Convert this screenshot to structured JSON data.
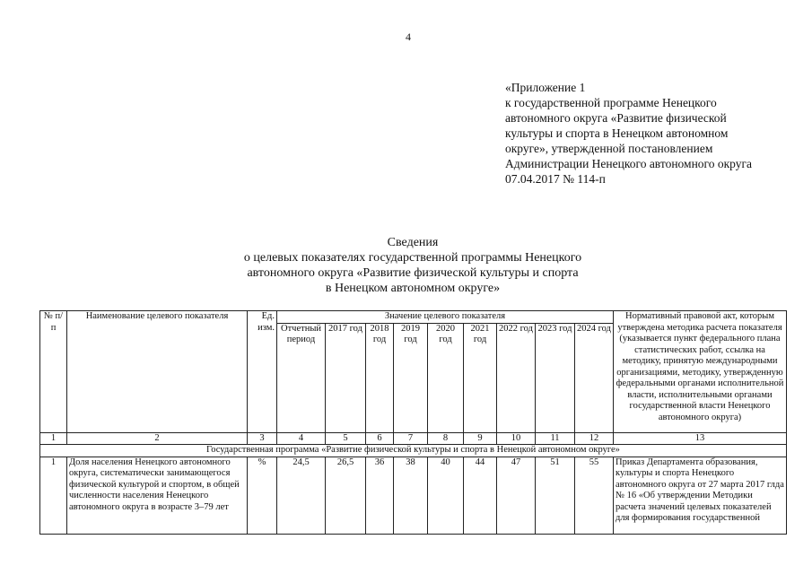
{
  "page_number": "4",
  "appendix": [
    "«Приложение 1",
    "к государственной программе Ненецкого",
    "автономного округа «Развитие физической",
    "культуры и спорта в Ненецком автономном",
    "округе», утвержденной постановлением",
    "Администрации Ненецкого автономного округа",
    "07.04.2017 № 114-п"
  ],
  "title": [
    "Сведения",
    "о целевых показателях государственной программы Ненецкого",
    "автономного округа «Развитие физической культуры и спорта",
    "в Ненецком автономном округе»"
  ],
  "table": {
    "headers": {
      "num": "№ п/п",
      "name": "Наименование целевого показателя",
      "unit": "Ед. изм.",
      "value_group": "Значение целевого показателя",
      "periods": [
        "Отчетный период",
        "2017 год",
        "2018 год",
        "2019 год",
        "2020 год",
        "2021 год",
        "2022 год",
        "2023 год",
        "2024 год"
      ],
      "act": "Нормативный правовой акт, которым утверждена методика расчета показателя (указывается пункт федерального плана статистических работ, ссылка на методику, принятую международными организациями, методику, утвержденную федеральными органами исполнительной власти, исполнительными органами государственной власти Ненецкого автономного округа)"
    },
    "column_numbers": [
      "1",
      "2",
      "3",
      "4",
      "5",
      "6",
      "7",
      "8",
      "9",
      "10",
      "11",
      "12",
      "13"
    ],
    "section": "Государственная программа «Развитие физической культуры и спорта в Ненецкой автономном округе»",
    "rows": [
      {
        "num": "1",
        "name": "Доля населения Ненецкого автономного округа, систематически занимающегося физической культурой и спортом, в общей численности населения Ненецкого автономного округа в возрасте 3–79 лет",
        "unit": "%",
        "values": [
          "24,5",
          "26,5",
          "36",
          "38",
          "40",
          "44",
          "47",
          "51",
          "55"
        ],
        "act": "Приказ Департамента образования, культуры и спорта Ненецкого автономного округа от 27 марта 2017 глда № 16 «Об утверждении Методики расчета значений целевых показателей для формирования государственной"
      }
    ]
  }
}
